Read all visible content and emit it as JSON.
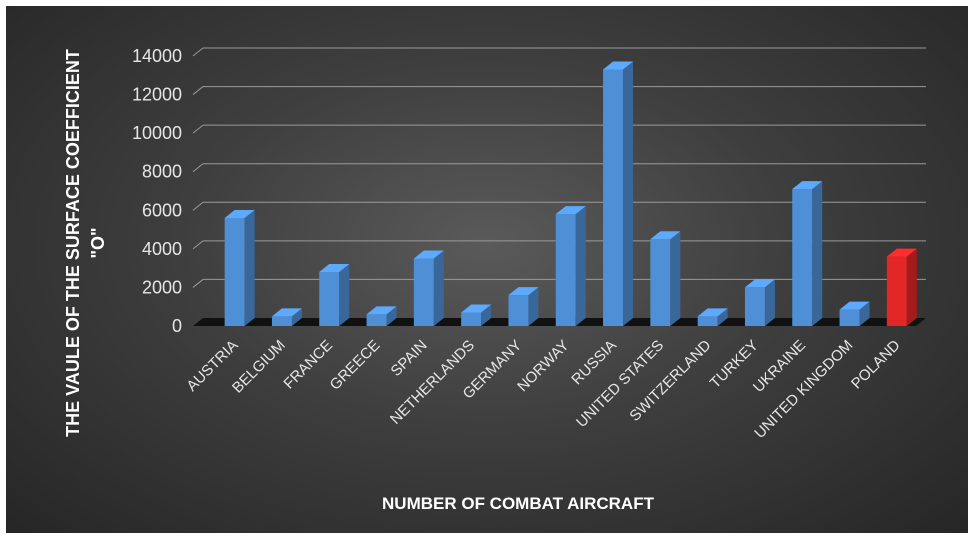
{
  "chart_data": {
    "type": "bar",
    "title": "",
    "xlabel": "NUMBER OF COMBAT AIRCRAFT",
    "ylabel_line1": "THE VAULE OF THE SURFACE COEFFICIENT",
    "ylabel_line2": "\"O\"",
    "ylim": [
      0,
      14000
    ],
    "yticks": [
      0,
      2000,
      4000,
      6000,
      8000,
      10000,
      12000,
      14000
    ],
    "grid": true,
    "legend": "none",
    "categories": [
      "AUSTRIA",
      "BELGIUM",
      "FRANCE",
      "GREECE",
      "SPAIN",
      "NETHERLANDS",
      "GERMANY",
      "NORWAY",
      "RUSSIA",
      "UNITED STATES",
      "SWITZERLAND",
      "TURKEY",
      "UKRAINE",
      "UNITED KINGDOM",
      "POLAND"
    ],
    "values": [
      5600,
      500,
      2800,
      600,
      3500,
      700,
      1600,
      5800,
      13300,
      4500,
      500,
      2000,
      7100,
      850,
      3600
    ],
    "colors": {
      "default": "#4f8fd6",
      "highlight": "#e32626",
      "highlight_category": "POLAND",
      "grid": "#9a9a9a",
      "text": "#e6e6e6"
    }
  }
}
